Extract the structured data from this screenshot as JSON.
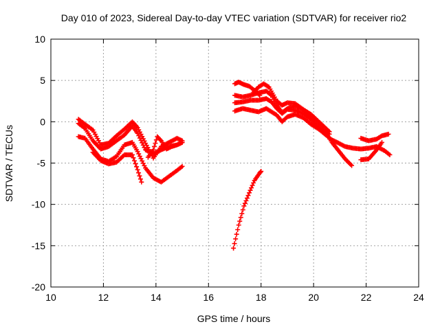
{
  "chart_data": {
    "type": "scatter",
    "title": "Day 010 of 2023, Sidereal Day-to-day VTEC variation (SDTVAR) for receiver rio2",
    "xlabel": "GPS time / hours",
    "ylabel": "SDTVAR / TECUs",
    "xlim": [
      10,
      24
    ],
    "ylim": [
      -20,
      10
    ],
    "xticks": [
      10,
      12,
      14,
      16,
      18,
      20,
      22,
      24
    ],
    "yticks": [
      -20,
      -15,
      -10,
      -5,
      0,
      5,
      10
    ],
    "xtick_labels": [
      "10",
      "12",
      "14",
      "16",
      "18",
      "20",
      "22",
      "24"
    ],
    "ytick_labels": [
      "-20",
      "-15",
      "-10",
      "-5",
      "0",
      "5",
      "10"
    ],
    "grid": true,
    "legend": "none",
    "marker": "plus",
    "color": "#ff0000",
    "series": [
      {
        "name": "trace-1",
        "x": [
          11.05,
          11.3,
          11.6,
          11.9,
          12.2,
          12.5,
          12.8,
          13.1,
          13.3,
          13.6,
          13.9,
          14.2,
          14.5,
          14.8,
          15.0
        ],
        "y": [
          0.3,
          -0.3,
          -1.0,
          -2.8,
          -2.6,
          -1.7,
          -0.9,
          0.0,
          -0.7,
          -2.6,
          -4.4,
          -3.0,
          -2.5,
          -2.0,
          -2.3
        ]
      },
      {
        "name": "trace-2",
        "x": [
          11.05,
          11.3,
          11.6,
          11.9,
          12.2,
          12.5,
          12.8,
          13.1,
          13.3,
          13.6,
          13.9,
          14.2,
          14.5,
          14.8,
          15.0
        ],
        "y": [
          -0.2,
          -0.8,
          -2.3,
          -3.3,
          -3.0,
          -2.3,
          -1.6,
          -0.5,
          -1.4,
          -3.4,
          -3.9,
          -3.4,
          -3.0,
          -2.8,
          -2.5
        ]
      },
      {
        "name": "trace-3",
        "x": [
          11.05,
          11.3,
          11.6,
          11.9,
          12.2,
          12.5,
          12.8,
          13.1,
          13.3,
          13.6,
          13.9,
          14.2,
          14.5,
          14.8,
          15.0
        ],
        "y": [
          -1.8,
          -2.0,
          -3.3,
          -4.5,
          -4.8,
          -4.2,
          -2.8,
          -2.5,
          -3.6,
          -5.6,
          -6.8,
          -7.3,
          -6.6,
          -5.9,
          -5.4
        ]
      },
      {
        "name": "trace-4",
        "x": [
          11.6,
          11.9,
          12.2,
          12.5,
          12.8,
          13.1,
          13.3,
          13.45
        ],
        "y": [
          -3.7,
          -4.7,
          -5.1,
          -4.9,
          -4.0,
          -4.0,
          -5.8,
          -7.3
        ]
      },
      {
        "name": "trace-5",
        "x": [
          13.7,
          13.9,
          14.05,
          14.2,
          14.4,
          14.6,
          14.8,
          15.0
        ],
        "y": [
          -4.3,
          -3.4,
          -1.8,
          -2.3,
          -3.3,
          -3.0,
          -2.8,
          -2.5
        ]
      },
      {
        "name": "trace-6",
        "x": [
          17.0,
          17.15,
          17.35,
          17.55,
          17.75,
          17.95
        ],
        "y": [
          4.6,
          4.8,
          4.5,
          4.3,
          3.8,
          3.2
        ]
      },
      {
        "name": "trace-7",
        "x": [
          16.95,
          17.15,
          17.35,
          17.55,
          17.75,
          17.95,
          18.0
        ],
        "y": [
          -15.3,
          -12.5,
          -10.2,
          -8.6,
          -7.1,
          -6.2,
          -6.0
        ]
      },
      {
        "name": "trace-8",
        "x": [
          17.7,
          17.9,
          18.1,
          18.3,
          18.6,
          18.8,
          19.0,
          19.3,
          19.6,
          19.9,
          20.2,
          20.5,
          20.6
        ],
        "y": [
          3.5,
          4.2,
          4.6,
          4.2,
          2.5,
          2.0,
          2.3,
          2.2,
          1.5,
          0.9,
          0.0,
          -0.9,
          -1.2
        ]
      },
      {
        "name": "trace-9",
        "x": [
          17.0,
          17.3,
          17.6,
          17.9,
          18.2,
          18.4,
          18.6,
          18.8,
          19.0,
          19.3,
          19.6,
          19.9,
          20.2,
          20.5,
          20.7,
          20.9,
          21.2,
          21.45
        ],
        "y": [
          3.2,
          3.0,
          3.2,
          3.5,
          3.7,
          3.2,
          2.0,
          1.1,
          1.6,
          1.9,
          1.5,
          0.6,
          -0.5,
          -1.5,
          -2.5,
          -3.3,
          -4.5,
          -5.3
        ]
      },
      {
        "name": "trace-10",
        "x": [
          17.0,
          17.3,
          17.6,
          17.9,
          18.2,
          18.4,
          18.6,
          18.8,
          19.0,
          19.3,
          19.6,
          19.9,
          20.2,
          20.5,
          20.7,
          20.9,
          21.2,
          21.5,
          21.8,
          22.1,
          22.4,
          22.7,
          22.9
        ],
        "y": [
          2.3,
          2.4,
          2.6,
          2.6,
          2.8,
          2.4,
          1.6,
          1.0,
          1.5,
          1.4,
          1.0,
          0.3,
          -0.9,
          -1.7,
          -2.2,
          -2.5,
          -3.0,
          -3.2,
          -3.3,
          -3.2,
          -3.0,
          -3.5,
          -4.0
        ]
      },
      {
        "name": "trace-11",
        "x": [
          17.0,
          17.3,
          17.6,
          17.9,
          18.2,
          18.4,
          18.6,
          18.8,
          19.0,
          19.3,
          19.6,
          19.9,
          20.2,
          20.5,
          20.6
        ],
        "y": [
          1.3,
          1.6,
          1.4,
          1.2,
          1.6,
          1.2,
          0.8,
          0.0,
          0.6,
          0.9,
          0.5,
          -0.3,
          -0.9,
          -1.4,
          -1.5
        ]
      },
      {
        "name": "trace-12",
        "x": [
          21.8,
          22.1,
          22.4,
          22.6
        ],
        "y": [
          -4.6,
          -4.5,
          -3.4,
          -2.5
        ]
      },
      {
        "name": "trace-13",
        "x": [
          21.8,
          22.1,
          22.4,
          22.6,
          22.85
        ],
        "y": [
          -2.0,
          -2.3,
          -2.1,
          -1.7,
          -1.5
        ]
      }
    ]
  }
}
